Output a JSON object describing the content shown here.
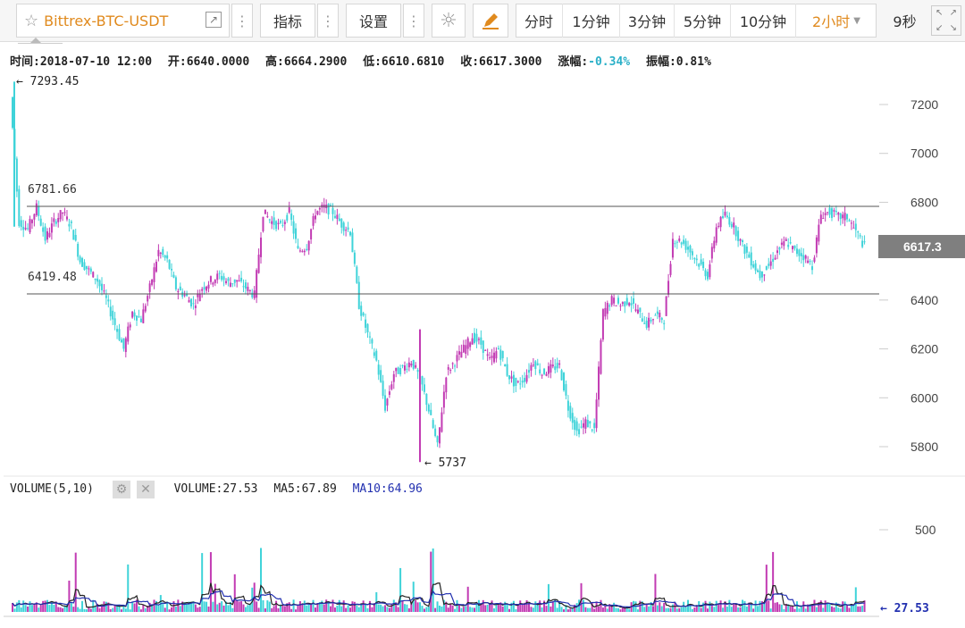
{
  "toolbar": {
    "symbol": "Bittrex-BTC-USDT",
    "indicators_label": "指标",
    "settings_label": "设置",
    "periods": [
      "分时",
      "1分钟",
      "3分钟",
      "5分钟",
      "10分钟",
      "2小时"
    ],
    "active_period": "2小时",
    "refresh": "9秒",
    "star_icon": "star-icon",
    "external_icon": "external-link-icon",
    "theme_icon": "sun-icon",
    "draw_icon": "pencil-icon",
    "fullscreen_icon": "fullscreen-icon"
  },
  "info": {
    "time": "时间:2018-07-10 12:00",
    "open": "开:6640.0000",
    "high": "高:6664.2900",
    "low": "低:6610.6810",
    "close": "收:6617.3000",
    "change_label": "涨幅:",
    "change_value": "-0.34%",
    "amplitude": "振幅:0.81%"
  },
  "price_axis": {
    "ticks": [
      "7200",
      "7000",
      "6800",
      "6600",
      "6400",
      "6200",
      "6000",
      "5800"
    ],
    "current": "6617.3",
    "max_label": "← 7293.45",
    "min_label": "← 5737",
    "line_upper": "6781.66",
    "line_lower": "6419.48"
  },
  "volume": {
    "title": "VOLUME(5,10)",
    "volume": "VOLUME:27.53",
    "ma5": "MA5:67.89",
    "ma10": "MA10:64.96",
    "tick": "500",
    "current": "← 27.53",
    "gear_icon": "gear-icon",
    "close_icon": "close-icon"
  },
  "colors": {
    "up": "#c23bb3",
    "down": "#3fd3d9",
    "ma5": "#222222",
    "ma10": "#2230b0",
    "accent": "#e08a1e"
  },
  "chart_data": {
    "type": "candlestick",
    "interval": "2h",
    "price_range": [
      5737,
      7293.45
    ],
    "horizontal_lines": [
      6781.66,
      6419.48
    ],
    "last_close": 6617.3,
    "close_path": [
      7230,
      6720,
      6690,
      6780,
      6650,
      6720,
      6760,
      6700,
      6560,
      6520,
      6480,
      6400,
      6300,
      6200,
      6350,
      6320,
      6450,
      6600,
      6560,
      6450,
      6420,
      6380,
      6450,
      6480,
      6500,
      6470,
      6480,
      6450,
      6420,
      6760,
      6720,
      6700,
      6760,
      6600,
      6620,
      6760,
      6780,
      6760,
      6710,
      6680,
      6380,
      6260,
      6150,
      5960,
      6100,
      6120,
      6150,
      6080,
      5950,
      5800,
      6100,
      6150,
      6200,
      6250,
      6220,
      6150,
      6200,
      6100,
      6050,
      6080,
      6150,
      6100,
      6120,
      6130,
      5960,
      5860,
      5900,
      5870,
      6350,
      6400,
      6380,
      6400,
      6350,
      6300,
      6340,
      6320,
      6650,
      6640,
      6600,
      6550,
      6500,
      6700,
      6750,
      6700,
      6620,
      6560,
      6500,
      6540,
      6600,
      6640,
      6600,
      6580,
      6540,
      6750,
      6760,
      6740,
      6740,
      6680,
      6620
    ],
    "volume_axis_tick": 500,
    "last_volume": 27.53,
    "ma5": 67.89,
    "ma10": 64.96
  }
}
